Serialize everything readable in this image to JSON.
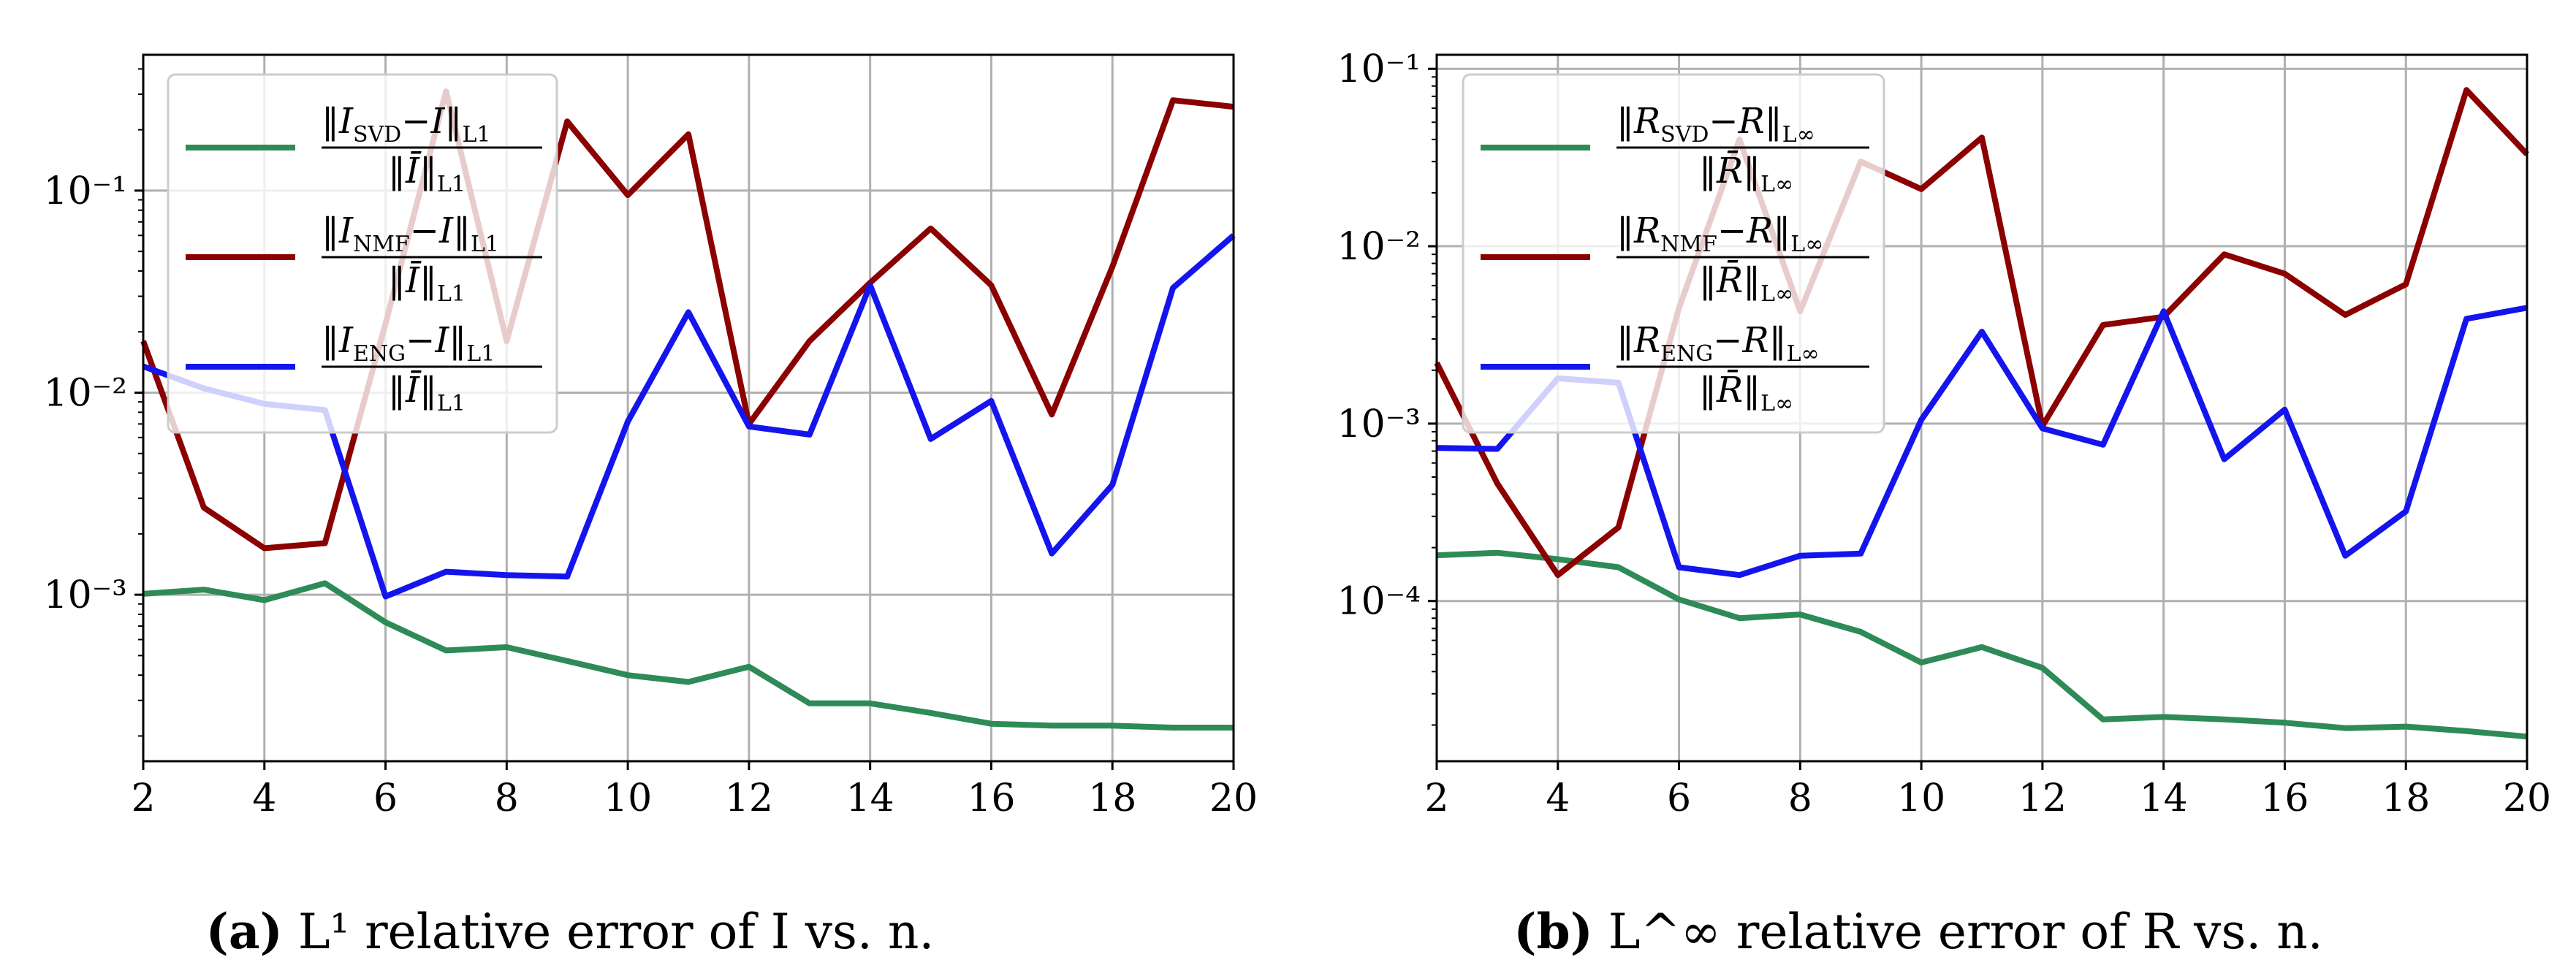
{
  "chart_data": [
    {
      "type": "line",
      "yscale": "log",
      "panel": "a",
      "caption_label": "(a)",
      "caption_text": "L¹ relative error of I vs. n.",
      "x": [
        2,
        3,
        4,
        5,
        6,
        7,
        8,
        9,
        10,
        11,
        12,
        13,
        14,
        15,
        16,
        17,
        18,
        19,
        20
      ],
      "xticks": [
        "2",
        "4",
        "6",
        "8",
        "10",
        "12",
        "14",
        "16",
        "18",
        "20"
      ],
      "xlim": [
        2,
        20
      ],
      "ylim": [
        0.00015,
        0.47
      ],
      "yticks": [
        "10⁻³",
        "10⁻²",
        "10⁻¹"
      ],
      "grid": true,
      "legend_location": "upper-left",
      "series": [
        {
          "name": "‖I_SVD − I‖_L1 / ‖Ī‖_L1",
          "color": "#2e8b57",
          "values": [
            0.00101,
            0.00106,
            0.00094,
            0.00114,
            0.00073,
            0.00053,
            0.00055,
            0.00047,
            0.0004,
            0.00037,
            0.00044,
            0.00029,
            0.00029,
            0.00026,
            0.00023,
            0.000225,
            0.000225,
            0.00022,
            0.00022
          ]
        },
        {
          "name": "‖I_NMF − I‖_L1 / ‖Ī‖_L1",
          "color": "#8b0000",
          "values": [
            0.018,
            0.0027,
            0.0017,
            0.0018,
            0.022,
            0.31,
            0.018,
            0.22,
            0.095,
            0.19,
            0.007,
            0.018,
            0.035,
            0.065,
            0.034,
            0.0078,
            0.042,
            0.28,
            0.26
          ]
        },
        {
          "name": "‖I_ENG − I‖_L1 / ‖Ī‖_L1",
          "color": "#1414ee",
          "values": [
            0.0135,
            0.0105,
            0.0088,
            0.0082,
            0.00098,
            0.0013,
            0.00125,
            0.00123,
            0.0072,
            0.025,
            0.0068,
            0.0062,
            0.034,
            0.0059,
            0.0091,
            0.0016,
            0.0035,
            0.033,
            0.06
          ]
        }
      ]
    },
    {
      "type": "line",
      "yscale": "log",
      "panel": "b",
      "caption_label": "(b)",
      "caption_text": "L^∞ relative error of R vs. n.",
      "x": [
        2,
        3,
        4,
        5,
        6,
        7,
        8,
        9,
        10,
        11,
        12,
        13,
        14,
        15,
        16,
        17,
        18,
        19,
        20
      ],
      "xticks": [
        "2",
        "4",
        "6",
        "8",
        "10",
        "12",
        "14",
        "16",
        "18",
        "20"
      ],
      "xlim": [
        2,
        20
      ],
      "ylim": [
        1.25e-05,
        0.12
      ],
      "yticks": [
        "10⁻⁴",
        "10⁻³",
        "10⁻²",
        "10⁻¹"
      ],
      "grid": true,
      "legend_location": "upper-left",
      "series": [
        {
          "name": "‖R_SVD − R‖_L∞ / ‖R̄‖_L∞",
          "color": "#2e8b57",
          "values": [
            0.000181,
            0.000187,
            0.000172,
            0.000155,
            0.000102,
            8e-05,
            8.4e-05,
            6.7e-05,
            4.5e-05,
            5.5e-05,
            4.2e-05,
            2.15e-05,
            2.22e-05,
            2.15e-05,
            2.06e-05,
            1.92e-05,
            1.96e-05,
            1.85e-05,
            1.72e-05
          ]
        },
        {
          "name": "‖R_NMF − R‖_L∞ / ‖R̄‖_L∞",
          "color": "#8b0000",
          "values": [
            0.0022,
            0.00046,
            0.00014,
            0.00026,
            0.0045,
            0.04,
            0.0043,
            0.03,
            0.021,
            0.041,
            0.00097,
            0.0036,
            0.004,
            0.009,
            0.007,
            0.0041,
            0.0061,
            0.076,
            0.033
          ]
        },
        {
          "name": "‖R_ENG − R‖_L∞ / ‖R̄‖_L∞",
          "color": "#1414ee",
          "values": [
            0.00073,
            0.00072,
            0.0018,
            0.0017,
            0.000155,
            0.00014,
            0.00018,
            0.000185,
            0.00105,
            0.0033,
            0.00094,
            0.00076,
            0.0043,
            0.00063,
            0.0012,
            0.00018,
            0.00032,
            0.0039,
            0.0045
          ]
        }
      ]
    }
  ],
  "legend": {
    "a": [
      {
        "num_main": "‖I",
        "num_sub": "SVD",
        "num_rest": "−I‖",
        "num_norm": "L1",
        "den_main": "‖Ī‖",
        "den_norm": "L1"
      },
      {
        "num_main": "‖I",
        "num_sub": "NMF",
        "num_rest": "−I‖",
        "num_norm": "L1",
        "den_main": "‖Ī‖",
        "den_norm": "L1"
      },
      {
        "num_main": "‖I",
        "num_sub": "ENG",
        "num_rest": "−I‖",
        "num_norm": "L1",
        "den_main": "‖Ī‖",
        "den_norm": "L1"
      }
    ],
    "b": [
      {
        "num_main": "‖R",
        "num_sub": "SVD",
        "num_rest": "−R‖",
        "num_norm": "L∞",
        "den_main": "‖R̄‖",
        "den_norm": "L∞"
      },
      {
        "num_main": "‖R",
        "num_sub": "NMF",
        "num_rest": "−R‖",
        "num_norm": "L∞",
        "den_main": "‖R̄‖",
        "den_norm": "L∞"
      },
      {
        "num_main": "‖R",
        "num_sub": "ENG",
        "num_rest": "−R‖",
        "num_norm": "L∞",
        "den_main": "‖R̄‖",
        "den_norm": "L∞"
      }
    ]
  }
}
